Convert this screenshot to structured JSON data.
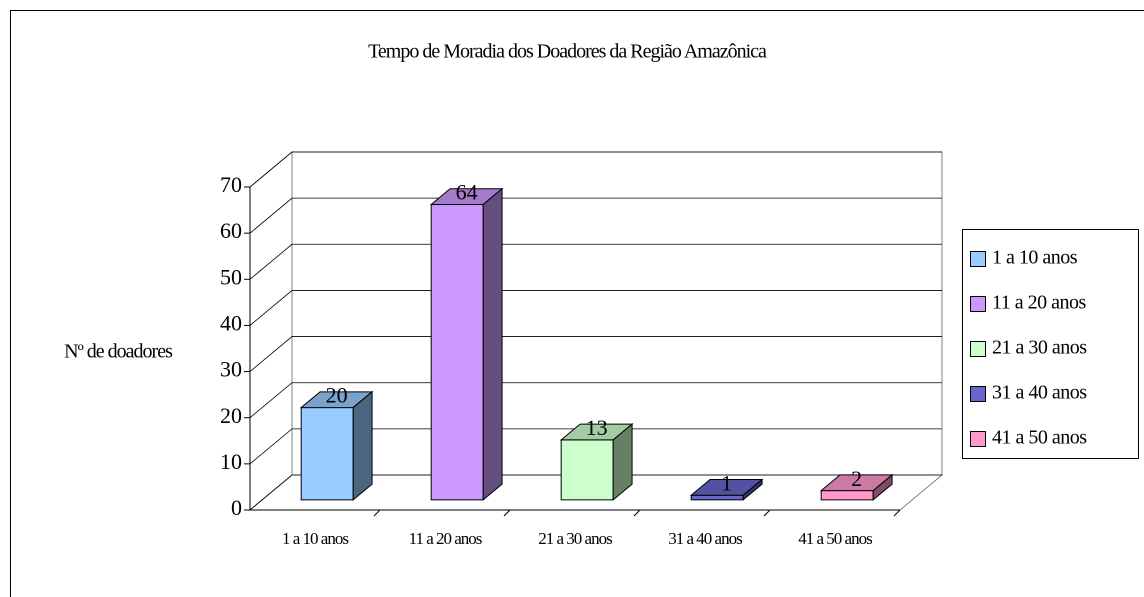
{
  "chart_data": {
    "type": "bar3d",
    "title": "Tempo de Moradia dos Doadores da Região Amazônica",
    "y_label": "Nº de doadores",
    "categories": [
      "1 a 10 anos",
      "11 a 20 anos",
      "21 a 30 anos",
      "31 a 40 anos",
      "41 a 50 anos"
    ],
    "values": [
      20,
      64,
      13,
      1,
      2
    ],
    "colors": [
      "#99ccff",
      "#cc99ff",
      "#ccffcc",
      "#6666cc",
      "#ff99cc"
    ],
    "ylim": [
      0,
      70
    ],
    "yticks": [
      0,
      10,
      20,
      30,
      40,
      50,
      60,
      70
    ],
    "grid": true,
    "legend": "right"
  }
}
